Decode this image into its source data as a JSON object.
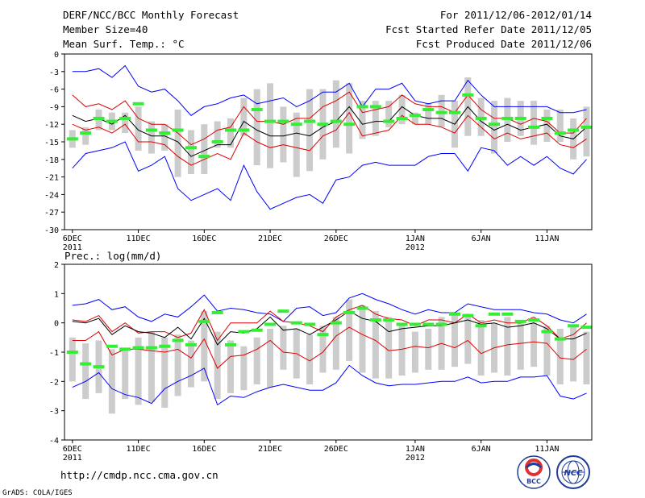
{
  "header": {
    "left_line1": "DERF/NCC/BCC Monthly Forecast",
    "left_line2": "Member Size=40",
    "right_line1": "For 2011/12/06-2012/01/14",
    "right_line2": "Fcst Started Refer Date 2011/12/05",
    "right_line3": "Fcst Produced Date 2011/12/06"
  },
  "footer": {
    "url": "http://cmdp.ncc.cma.gov.cn",
    "grads": "GrADS: COLA/IGES",
    "logo_bcc": "BCC",
    "logo_ncc": "NCC"
  },
  "colors": {
    "max_min": "#0000ff",
    "spread": "#dd0000",
    "ensemble_mean": "#000000",
    "box": "#cccccc",
    "median": "#33ee33"
  },
  "x_ticks": [
    {
      "day": 1,
      "label": "6DEC",
      "sub": "2011"
    },
    {
      "day": 6,
      "label": "11DEC",
      "sub": ""
    },
    {
      "day": 11,
      "label": "16DEC",
      "sub": ""
    },
    {
      "day": 16,
      "label": "21DEC",
      "sub": ""
    },
    {
      "day": 21,
      "label": "26DEC",
      "sub": ""
    },
    {
      "day": 27,
      "label": "1JAN",
      "sub": "2012"
    },
    {
      "day": 32,
      "label": "6JAN",
      "sub": ""
    },
    {
      "day": 37,
      "label": "11JAN",
      "sub": ""
    }
  ],
  "chart_data": [
    {
      "type": "line",
      "title": "Mean Surf. Temp.: °C",
      "ylim": [
        -30,
        0
      ],
      "yticks": [
        0,
        -3,
        -6,
        -9,
        -12,
        -15,
        -18,
        -21,
        -24,
        -27,
        -30
      ],
      "xlim": [
        0.4,
        40.4
      ],
      "x": [
        1,
        2,
        3,
        4,
        5,
        6,
        7,
        8,
        9,
        10,
        11,
        12,
        13,
        14,
        15,
        16,
        17,
        18,
        19,
        20,
        21,
        22,
        23,
        24,
        25,
        26,
        27,
        28,
        29,
        30,
        31,
        32,
        33,
        34,
        35,
        36,
        37,
        38,
        39,
        40
      ],
      "series": [
        {
          "name": "max",
          "values": [
            -3,
            -3,
            -2.5,
            -4,
            -2,
            -5.5,
            -6.5,
            -6,
            -8,
            -10.5,
            -9,
            -8.5,
            -7.5,
            -7,
            -8.5,
            -8,
            -7.5,
            -9,
            -8,
            -6.5,
            -6.5,
            -5,
            -9,
            -6,
            -6,
            -5,
            -8,
            -8.5,
            -8,
            -8,
            -4.5,
            -7,
            -9,
            -9,
            -9,
            -9,
            -9,
            -10,
            -10,
            -9.5
          ]
        },
        {
          "name": "upper",
          "values": [
            -7,
            -9,
            -8.5,
            -9.5,
            -8,
            -11,
            -12,
            -12,
            -13.5,
            -15.5,
            -14.5,
            -13,
            -12.5,
            -9,
            -11.5,
            -11.5,
            -12,
            -11,
            -11,
            -9,
            -8,
            -6.5,
            -10,
            -9.5,
            -9,
            -7,
            -8.5,
            -9,
            -9,
            -10,
            -7,
            -9.5,
            -11,
            -11,
            -12,
            -11,
            -11.5,
            -13.5,
            -13.5,
            -11
          ]
        },
        {
          "name": "mean",
          "values": [
            -10.5,
            -11.5,
            -11,
            -12,
            -10.5,
            -13,
            -14,
            -14,
            -15,
            -17.5,
            -16.5,
            -15.5,
            -15.5,
            -11.5,
            -13,
            -14,
            -14,
            -13.5,
            -14,
            -12.5,
            -11.5,
            -9,
            -12,
            -11.5,
            -11.5,
            -9,
            -10.5,
            -11,
            -11,
            -12,
            -9,
            -11.5,
            -13,
            -12,
            -13,
            -12.5,
            -12,
            -14,
            -14.5,
            -12.5
          ]
        },
        {
          "name": "lower",
          "values": [
            -12,
            -13,
            -12.5,
            -13.5,
            -12,
            -15,
            -15,
            -15.5,
            -17.5,
            -19,
            -18,
            -17,
            -18,
            -13.5,
            -15,
            -16,
            -15.5,
            -16,
            -16.5,
            -14,
            -13,
            -10,
            -14,
            -13.5,
            -13,
            -10.5,
            -12,
            -12,
            -12.5,
            -13.5,
            -10.5,
            -12.5,
            -14.5,
            -13.5,
            -14.5,
            -14,
            -13.5,
            -15.5,
            -16,
            -14.5
          ]
        },
        {
          "name": "min",
          "values": [
            -19.5,
            -17,
            -16.5,
            -16,
            -15,
            -20,
            -19,
            -17.5,
            -23,
            -25,
            -24,
            -23,
            -25,
            -19,
            -23.5,
            -26.5,
            -25.5,
            -24.5,
            -24,
            -25.5,
            -21.5,
            -21,
            -19,
            -18.5,
            -19,
            -19,
            -19,
            -17.5,
            -17,
            -17,
            -20,
            -16,
            -16.5,
            -19,
            -17.5,
            -19,
            -17.5,
            -19.5,
            -20.5,
            -18
          ]
        },
        {
          "name": "box_top",
          "values": [
            -13,
            -12.5,
            -9.5,
            -10,
            -10,
            -9,
            -11.5,
            -12,
            -9.5,
            -13,
            -12,
            -11.5,
            -11,
            -7.5,
            -6,
            -5,
            -9,
            -10,
            -6,
            -6,
            -4.5,
            -5,
            -8,
            -8,
            -8,
            -7,
            -10,
            -8.5,
            -7,
            -8,
            -4,
            -7.5,
            -8,
            -7.5,
            -8,
            -8,
            -9.5,
            -9.5,
            -11,
            -9
          ]
        },
        {
          "name": "box_bottom",
          "values": [
            -16,
            -15.5,
            -13,
            -13,
            -13.5,
            -16.5,
            -17,
            -16.5,
            -21,
            -20.5,
            -20.5,
            -16,
            -16,
            -14,
            -19,
            -19.5,
            -18.5,
            -21,
            -20,
            -18,
            -16,
            -17,
            -14.5,
            -14,
            -12.5,
            -12,
            -12,
            -12,
            -12.5,
            -16,
            -14,
            -14,
            -17,
            -15,
            -14,
            -15.5,
            -15,
            -15,
            -18,
            -17.5
          ]
        },
        {
          "name": "median",
          "values": [
            -14.5,
            -13.5,
            -11,
            -11.5,
            -11,
            -8.5,
            -13,
            -13.5,
            -13,
            -16,
            -17.5,
            -15,
            -13,
            -13,
            -9.5,
            -11.5,
            -11.5,
            -12,
            -11.5,
            -12,
            -11.5,
            -12,
            -9,
            -9,
            -11.5,
            -11,
            -10.5,
            -9.5,
            -10,
            -10,
            -7,
            -11,
            -12,
            -11,
            -11,
            -12.5,
            -11,
            -13.5,
            -13,
            -12.5
          ]
        }
      ]
    },
    {
      "type": "line",
      "title": "Prec.: log(mm/d)",
      "ylim": [
        -4,
        2
      ],
      "yticks": [
        2,
        1,
        0,
        -1,
        -2,
        -3,
        -4
      ],
      "xlim": [
        0.4,
        40.4
      ],
      "x": [
        1,
        2,
        3,
        4,
        5,
        6,
        7,
        8,
        9,
        10,
        11,
        12,
        13,
        14,
        15,
        16,
        17,
        18,
        19,
        20,
        21,
        22,
        23,
        24,
        25,
        26,
        27,
        28,
        29,
        30,
        31,
        32,
        33,
        34,
        35,
        36,
        37,
        38,
        39,
        40
      ],
      "series": [
        {
          "name": "max",
          "values": [
            0.6,
            0.65,
            0.8,
            0.45,
            0.55,
            0.2,
            0.05,
            0.3,
            0.2,
            0.55,
            0.95,
            0.4,
            0.5,
            0.45,
            0.35,
            0.3,
            0.05,
            0.5,
            0.55,
            0.25,
            0.35,
            0.85,
            1.0,
            0.8,
            0.65,
            0.45,
            0.3,
            0.45,
            0.35,
            0.35,
            0.65,
            0.55,
            0.45,
            0.45,
            0.45,
            0.35,
            0.3,
            0.1,
            0.0,
            0.3
          ]
        },
        {
          "name": "upper",
          "values": [
            0.1,
            0.05,
            0.25,
            -0.3,
            0.0,
            -0.35,
            -0.3,
            -0.3,
            -0.5,
            -0.35,
            0.45,
            -0.6,
            0.0,
            0.0,
            0.0,
            0.4,
            0.05,
            0.0,
            -0.1,
            -0.3,
            0.2,
            0.45,
            0.6,
            0.3,
            0.15,
            0.1,
            -0.1,
            0.1,
            0.1,
            0.0,
            0.3,
            0.0,
            0.1,
            0.0,
            0.0,
            0.2,
            -0.1,
            -0.55,
            -0.4,
            0.0
          ]
        },
        {
          "name": "mean",
          "values": [
            0.05,
            0.0,
            0.15,
            -0.4,
            -0.1,
            -0.3,
            -0.35,
            -0.5,
            -0.15,
            -0.55,
            0.15,
            -0.75,
            -0.3,
            -0.35,
            -0.2,
            0.2,
            -0.25,
            -0.2,
            -0.4,
            -0.15,
            0.1,
            0.4,
            0.15,
            0.05,
            -0.3,
            -0.2,
            -0.15,
            -0.1,
            -0.1,
            0.0,
            0.1,
            -0.05,
            0.0,
            -0.15,
            -0.1,
            0.0,
            -0.2,
            -0.55,
            -0.55,
            -0.35
          ]
        },
        {
          "name": "lower",
          "values": [
            -0.6,
            -0.6,
            -0.3,
            -1.1,
            -0.9,
            -0.9,
            -0.95,
            -1.0,
            -0.9,
            -1.2,
            -0.55,
            -1.55,
            -1.15,
            -1.1,
            -0.9,
            -0.6,
            -1.0,
            -1.05,
            -1.3,
            -1.0,
            -0.45,
            -0.15,
            -0.4,
            -0.6,
            -0.95,
            -0.9,
            -0.8,
            -0.85,
            -0.7,
            -0.85,
            -0.6,
            -1.05,
            -0.85,
            -0.75,
            -0.7,
            -0.65,
            -0.7,
            -1.2,
            -1.25,
            -0.9
          ]
        },
        {
          "name": "min",
          "values": [
            -2.2,
            -2.0,
            -1.7,
            -2.25,
            -2.45,
            -2.55,
            -2.75,
            -2.25,
            -2.0,
            -1.8,
            -1.55,
            -2.8,
            -2.5,
            -2.55,
            -2.35,
            -2.2,
            -2.1,
            -2.2,
            -2.3,
            -2.3,
            -2.05,
            -1.45,
            -1.8,
            -2.05,
            -2.15,
            -2.1,
            -2.1,
            -2.05,
            -2.0,
            -2.0,
            -1.85,
            -2.05,
            -2.0,
            -2.0,
            -1.85,
            -1.85,
            -1.8,
            -2.5,
            -2.6,
            -2.4
          ]
        },
        {
          "name": "box_top",
          "values": [
            -0.5,
            -0.7,
            -0.6,
            -0.9,
            -0.9,
            -0.5,
            -0.3,
            -0.5,
            -0.4,
            -0.6,
            0.4,
            -0.3,
            -0.6,
            -0.8,
            -0.5,
            -0.2,
            -0.1,
            -0.2,
            -0.4,
            -0.1,
            0.2,
            0.8,
            0.6,
            0.4,
            0.2,
            -0.1,
            -0.3,
            -0.2,
            0.2,
            0.3,
            0.3,
            0.1,
            0.0,
            0.2,
            0.1,
            0.0,
            -0.1,
            -0.2,
            -0.1,
            -0.3
          ]
        },
        {
          "name": "box_bottom",
          "values": [
            -2.0,
            -2.6,
            -2.4,
            -3.1,
            -2.6,
            -2.8,
            -2.7,
            -2.9,
            -2.5,
            -2.2,
            -2.0,
            -2.6,
            -2.4,
            -2.3,
            -2.1,
            -2.2,
            -1.6,
            -1.9,
            -2.1,
            -1.7,
            -1.6,
            -1.3,
            -1.7,
            -1.9,
            -1.9,
            -1.8,
            -1.7,
            -1.6,
            -1.6,
            -1.5,
            -1.4,
            -1.8,
            -1.7,
            -1.8,
            -1.6,
            -1.5,
            -1.8,
            -2.1,
            -2.0,
            -2.1
          ]
        },
        {
          "name": "median",
          "values": [
            -1.0,
            -1.4,
            -1.5,
            -0.8,
            -0.9,
            -0.85,
            -0.85,
            -0.8,
            -0.6,
            -0.75,
            0.05,
            0.35,
            -0.75,
            -0.3,
            -0.25,
            -0.05,
            0.4,
            0.0,
            -0.05,
            -0.4,
            0.0,
            0.35,
            0.5,
            0.1,
            0.1,
            -0.05,
            -0.05,
            -0.05,
            -0.05,
            0.3,
            0.25,
            -0.1,
            0.3,
            0.3,
            0.05,
            0.1,
            -0.3,
            -0.55,
            -0.1,
            -0.15
          ]
        }
      ]
    }
  ]
}
